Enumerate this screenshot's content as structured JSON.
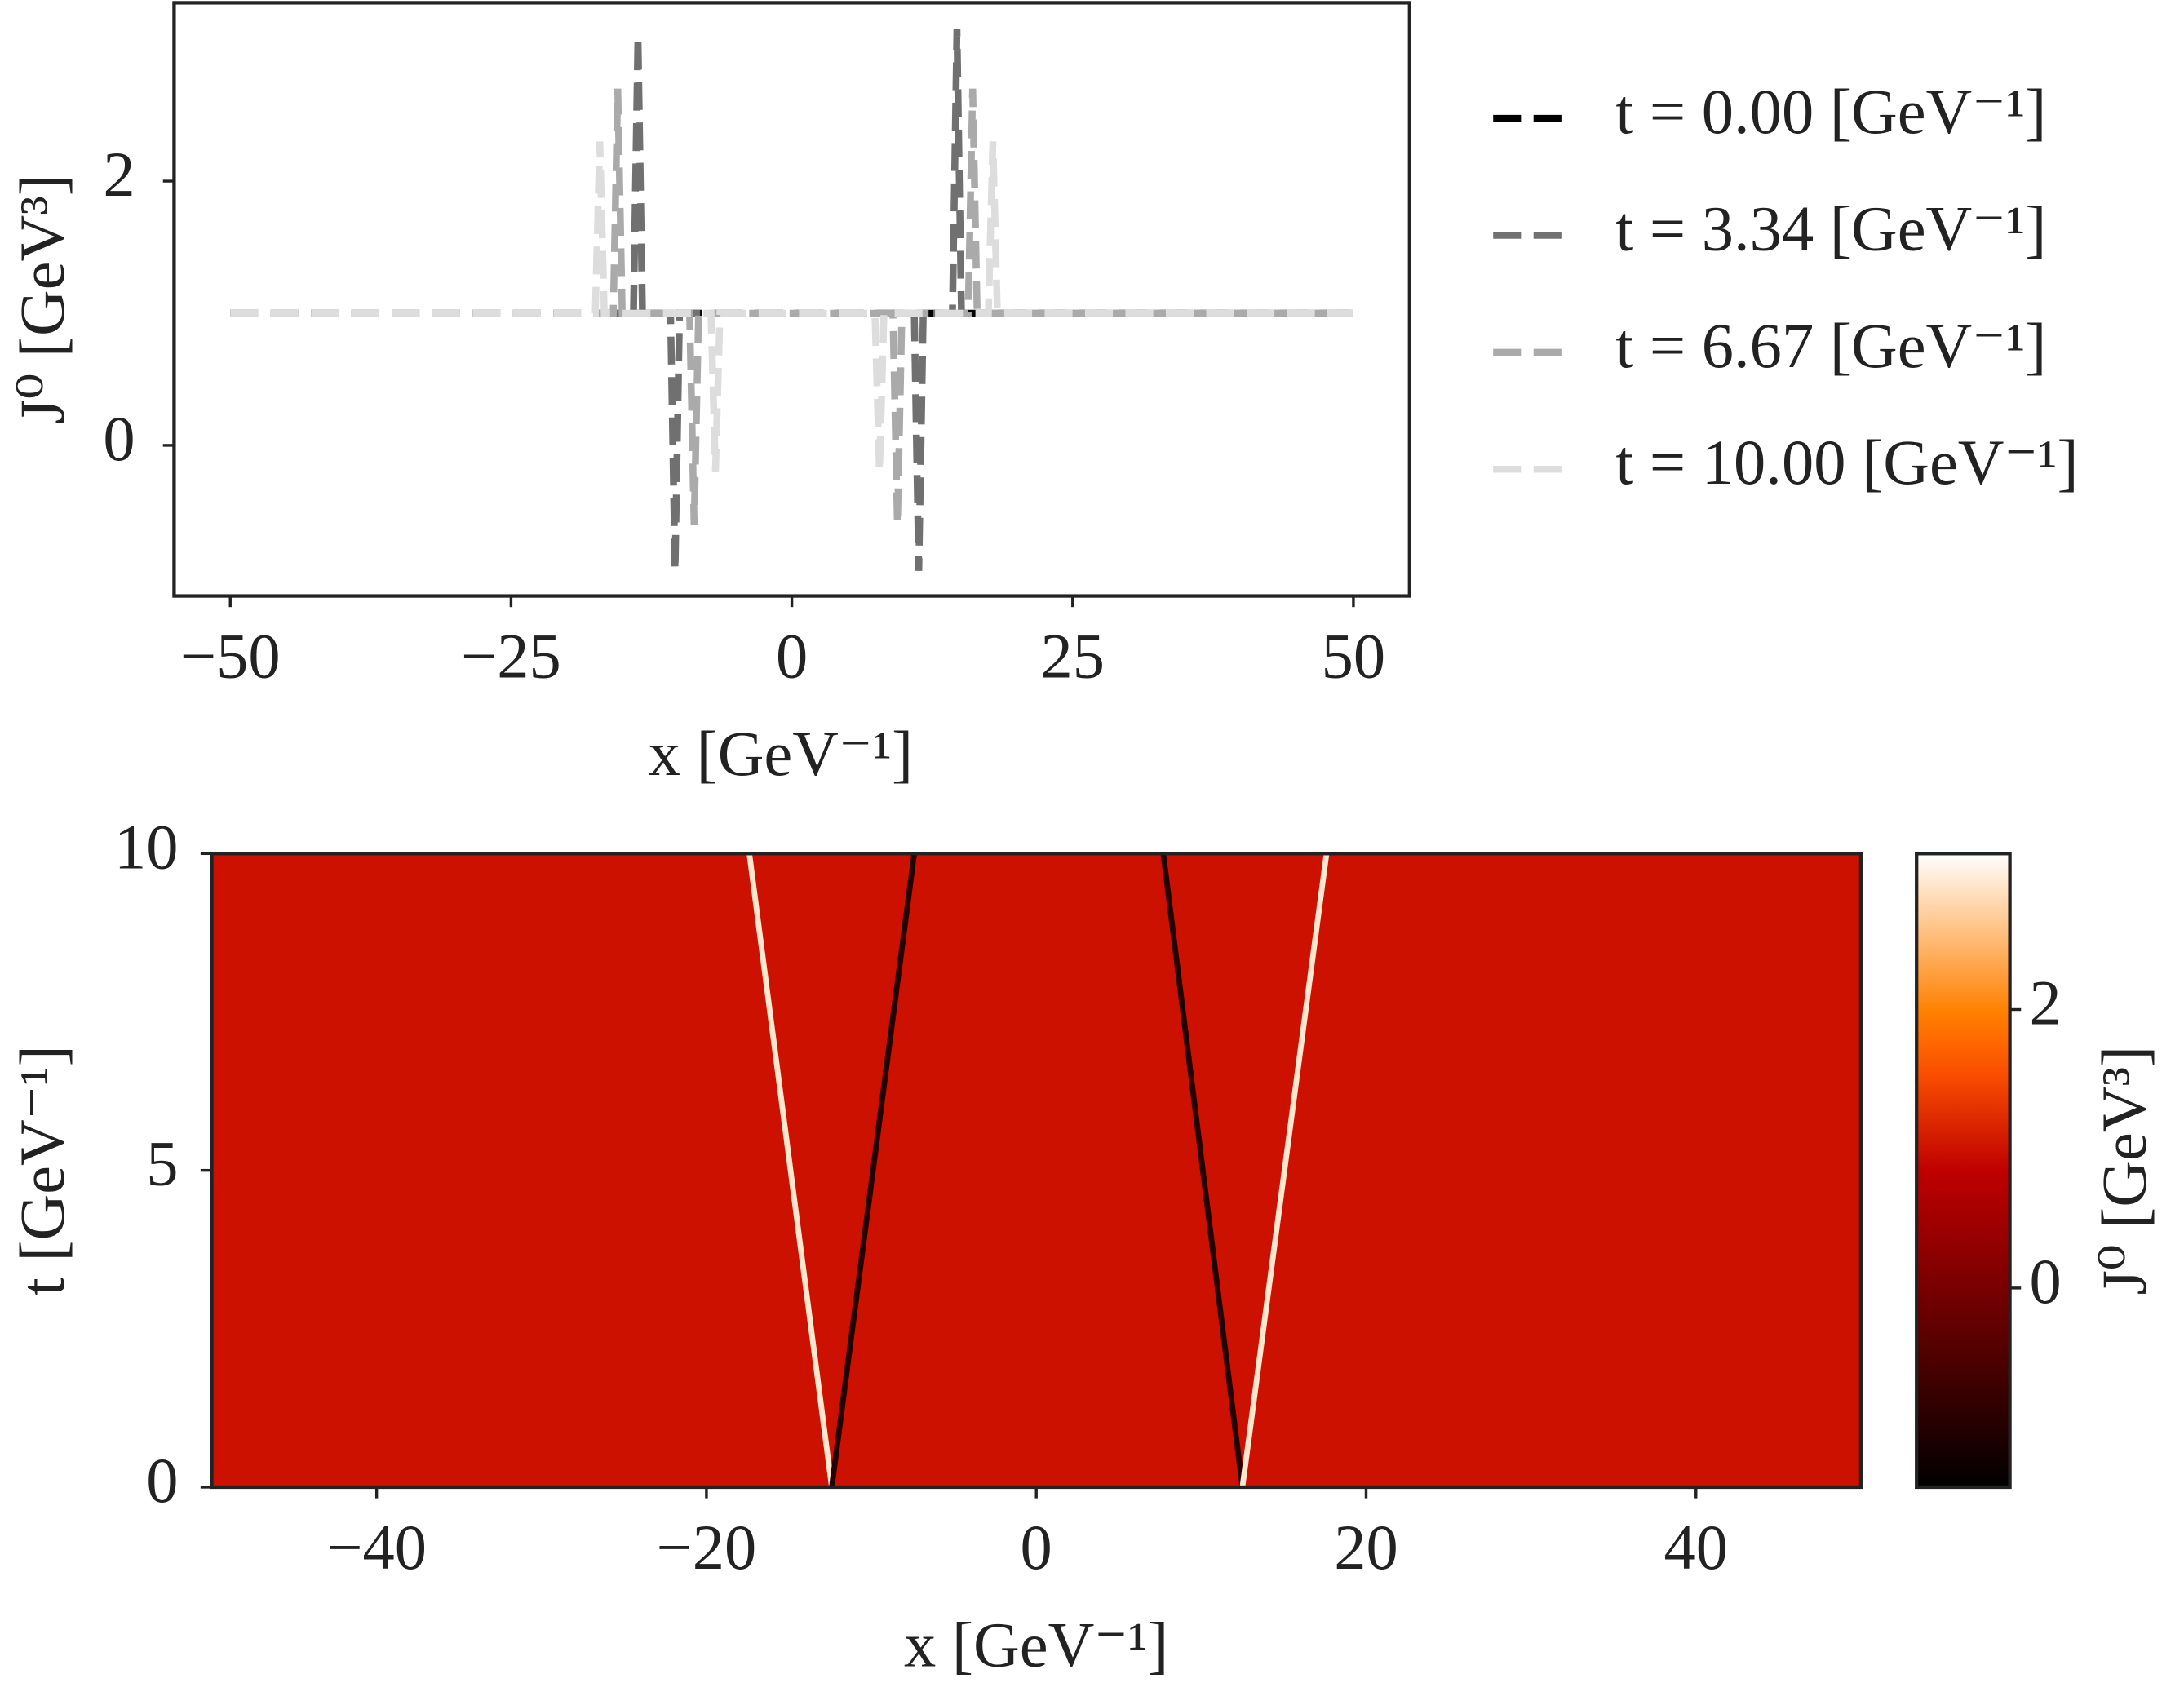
{
  "chart_data": [
    {
      "type": "line",
      "xlabel": "x [GeV⁻¹]",
      "ylabel": "J⁰ [GeV³]",
      "xlim": [
        -55,
        55
      ],
      "ylim": [
        -1.14,
        3.35
      ],
      "xticks": [
        {
          "value": -50,
          "label": "−50"
        },
        {
          "value": -25,
          "label": "−25"
        },
        0,
        25,
        50
      ],
      "yticks": [
        0,
        2
      ],
      "legend": "outside-right",
      "series": [
        {
          "name": "t = 0.00 [GeV⁻¹]",
          "color": "#000000",
          "x": [
            -50,
            -13.0,
            -12.5,
            -12.0,
            12.0,
            12.5,
            13.0,
            50
          ],
          "values": [
            1,
            1,
            1,
            1,
            1,
            1,
            1,
            1
          ]
        },
        {
          "name": "t = 3.34 [GeV⁻¹]",
          "color": "#707070",
          "x": [
            -50,
            -14.1,
            -13.7,
            -13.3,
            -10.8,
            -10.4,
            -10.0,
            10.9,
            11.3,
            11.7,
            14.3,
            14.7,
            15.1,
            50
          ],
          "values": [
            1,
            1,
            3.1,
            1,
            1,
            -0.95,
            1,
            1,
            -0.95,
            1,
            1,
            3.15,
            1,
            1
          ]
        },
        {
          "name": "t = 6.67 [GeV⁻¹]",
          "color": "#aaaaaa",
          "x": [
            -50,
            -15.9,
            -15.5,
            -15.1,
            -9.1,
            -8.7,
            -8.3,
            9.0,
            9.4,
            9.8,
            15.7,
            16.1,
            16.5,
            50
          ],
          "values": [
            1,
            1,
            2.7,
            1,
            1,
            -0.6,
            1,
            1,
            -0.6,
            1,
            1,
            2.7,
            1,
            1
          ]
        },
        {
          "name": "t = 10.00 [GeV⁻¹]",
          "color": "#dddddd",
          "x": [
            -50,
            -17.5,
            -17.1,
            -16.7,
            -7.2,
            -6.8,
            -6.4,
            7.4,
            7.8,
            8.2,
            17.5,
            17.9,
            18.3,
            50
          ],
          "values": [
            1,
            1,
            2.3,
            1,
            1,
            -0.2,
            1,
            1,
            -0.2,
            1,
            1,
            2.3,
            1,
            1
          ]
        }
      ]
    },
    {
      "type": "heatmap",
      "xlabel": "x [GeV⁻¹]",
      "ylabel": "t [GeV⁻¹]",
      "colorbar_label": "J⁰ [GeV³]",
      "xlim": [
        -50,
        50
      ],
      "ylim": [
        0,
        10
      ],
      "xticks": [
        {
          "value": -40,
          "label": "−40"
        },
        {
          "value": -20,
          "label": "−20"
        },
        0,
        20,
        40
      ],
      "yticks": [
        0,
        5,
        10
      ],
      "clim": [
        -1.43,
        3.12
      ],
      "cticks": [
        0,
        2
      ],
      "colormap": "gist_heat",
      "background": 1,
      "fronts": [
        {
          "x": [
            -12.4,
            -17.4
          ],
          "y": [
            0,
            10
          ],
          "value": 2.9
        },
        {
          "x": [
            -12.4,
            -7.4
          ],
          "y": [
            0,
            10
          ],
          "value": -1.0
        },
        {
          "x": [
            12.5,
            7.7
          ],
          "y": [
            0,
            10
          ],
          "value": -1.0
        },
        {
          "x": [
            12.5,
            17.6
          ],
          "y": [
            0,
            10
          ],
          "value": 2.9
        }
      ]
    }
  ]
}
